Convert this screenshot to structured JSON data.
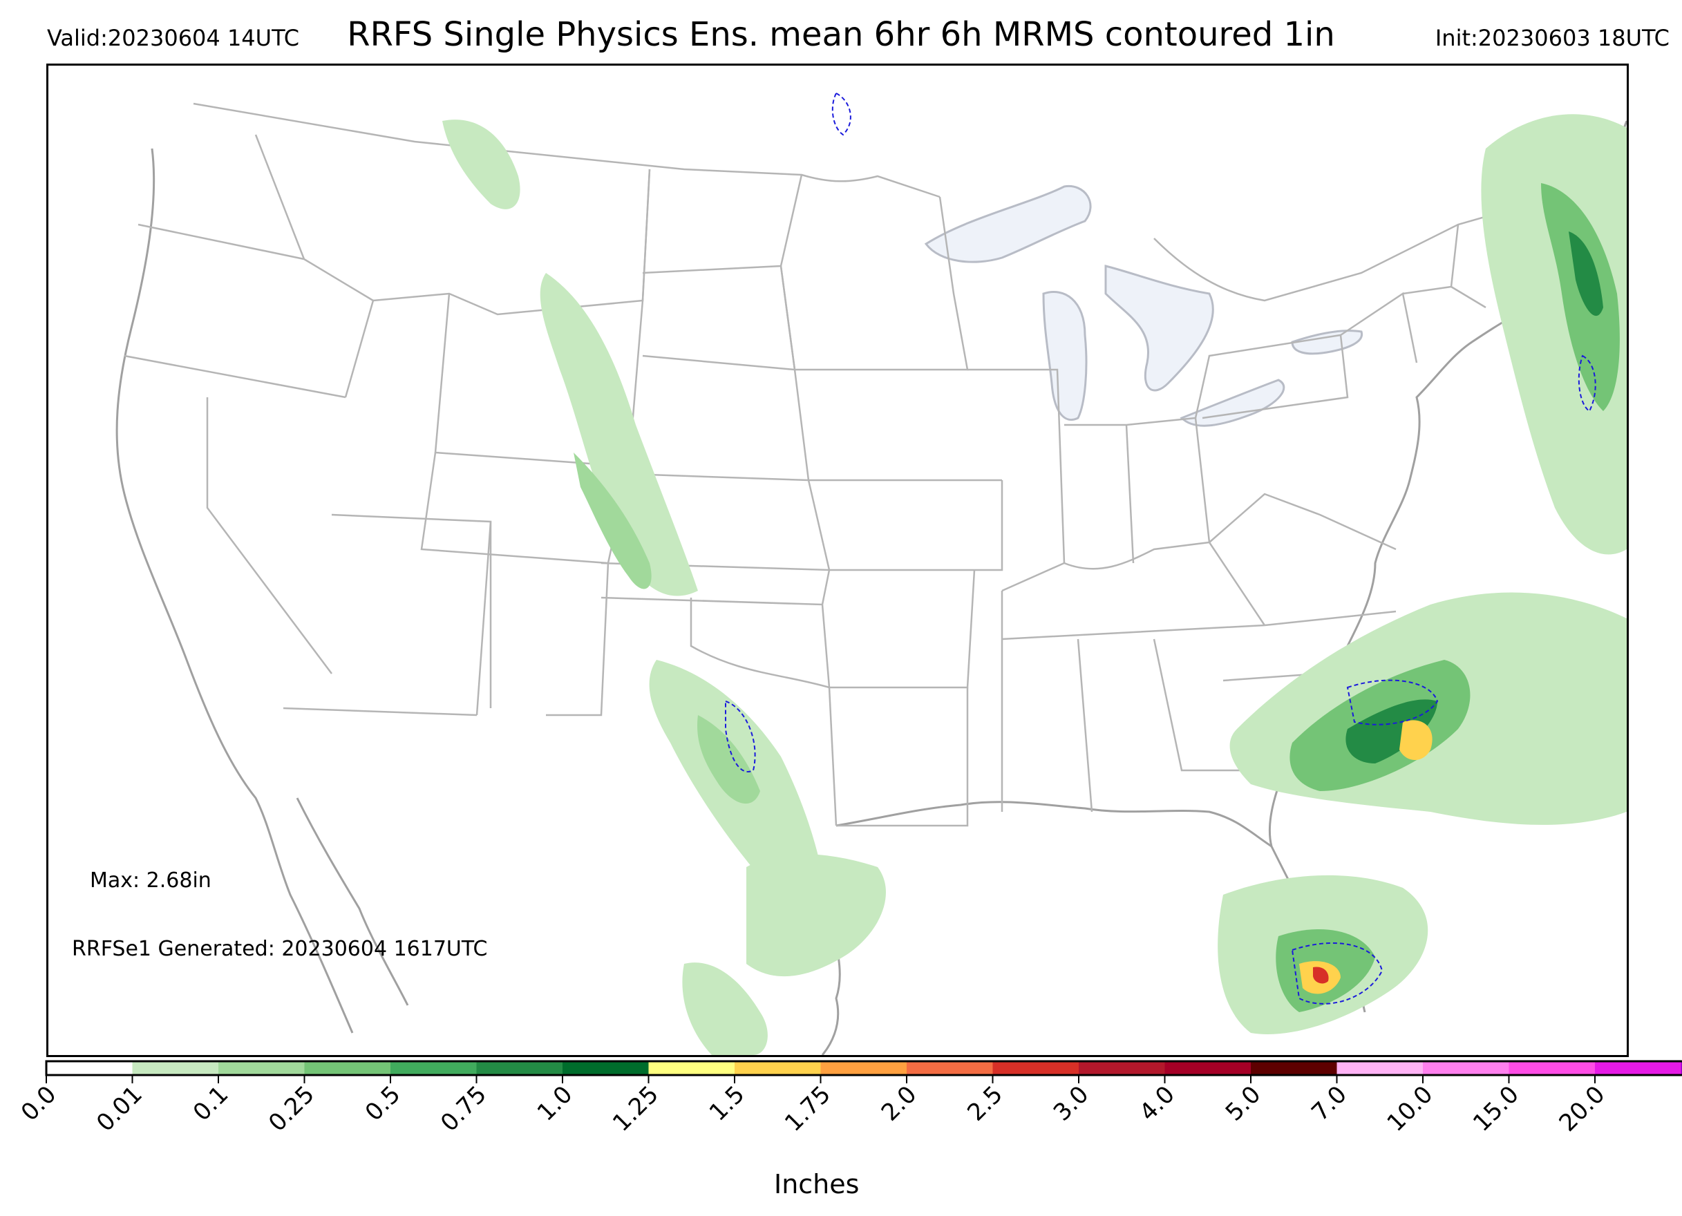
{
  "header": {
    "valid": "Valid:20230604 14UTC",
    "title": "RRFS Single Physics Ens. mean 6hr 6h MRMS contoured 1in",
    "init": "Init:20230603 18UTC"
  },
  "annotations": {
    "max": "Max: 2.68in",
    "generated": "RRFSe1 Generated: 20230604 1617UTC"
  },
  "colorbar": {
    "title": "Inches",
    "ticks": [
      "0.0",
      "0.01",
      "0.1",
      "0.25",
      "0.5",
      "0.75",
      "1.0",
      "1.25",
      "1.5",
      "1.75",
      "2.0",
      "2.5",
      "3.0",
      "4.0",
      "5.0",
      "7.0",
      "10.0",
      "15.0",
      "20.0"
    ],
    "colors": [
      "#ffffff",
      "#c7e9c0",
      "#a1d99b",
      "#74c476",
      "#41ab5d",
      "#238b45",
      "#006d2c",
      "#ffff80",
      "#ffd24d",
      "#ffa040",
      "#f46d43",
      "#d73027",
      "#b2182b",
      "#a50026",
      "#5e0000",
      "#ffb3f5",
      "#ff80ee",
      "#ff4de6",
      "#e61ae6",
      "#9900cc"
    ],
    "extend": "max"
  },
  "map": {
    "colors": {
      "border": "#b0b0b0",
      "coast": "#a0a0a0",
      "lake_fill": "#eef2f9",
      "mrms_contour": "#1a1adb"
    },
    "contour_threshold": "1in"
  }
}
